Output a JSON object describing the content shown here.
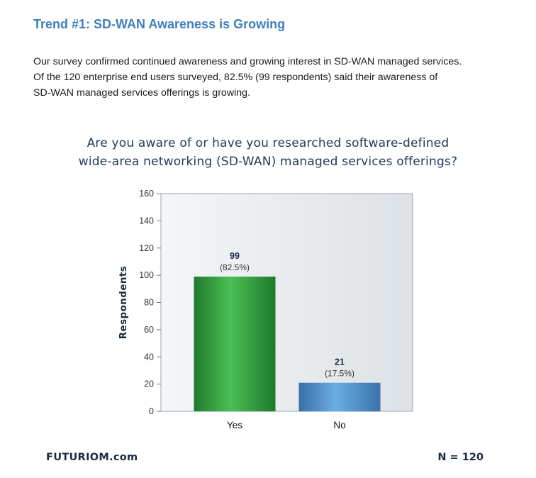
{
  "heading": "Trend #1: SD-WAN Awareness is Growing",
  "intro": [
    "Our survey confirmed continued awareness and growing interest in SD-WAN managed services.",
    "Of the 120 enterprise end users surveyed, 82.5% (99 respondents) said their awareness of",
    "SD-WAN managed services offerings is growing."
  ],
  "footer": {
    "brand": "FUTURIOM.com",
    "sample": "N = 120"
  },
  "colors": {
    "heading": "#3f7fbf",
    "yes_bar": "#2a9a3a",
    "no_bar": "#4f8fc8",
    "plot_bg": "#e8ecef"
  },
  "chart_data": {
    "type": "bar",
    "title_lines": [
      "Are you aware of or have you researched software-defined",
      "wide-area networking (SD-WAN) managed services offerings?"
    ],
    "xlabel": "",
    "ylabel": "Respondents",
    "categories": [
      "Yes",
      "No"
    ],
    "values": [
      99,
      21
    ],
    "value_labels": [
      "99",
      "21"
    ],
    "pct_labels": [
      "(82.5%)",
      "(17.5%)"
    ],
    "ylim": [
      0,
      160
    ],
    "yticks": [
      0,
      20,
      40,
      60,
      80,
      100,
      120,
      140,
      160
    ],
    "grid": false,
    "legend": "none"
  }
}
